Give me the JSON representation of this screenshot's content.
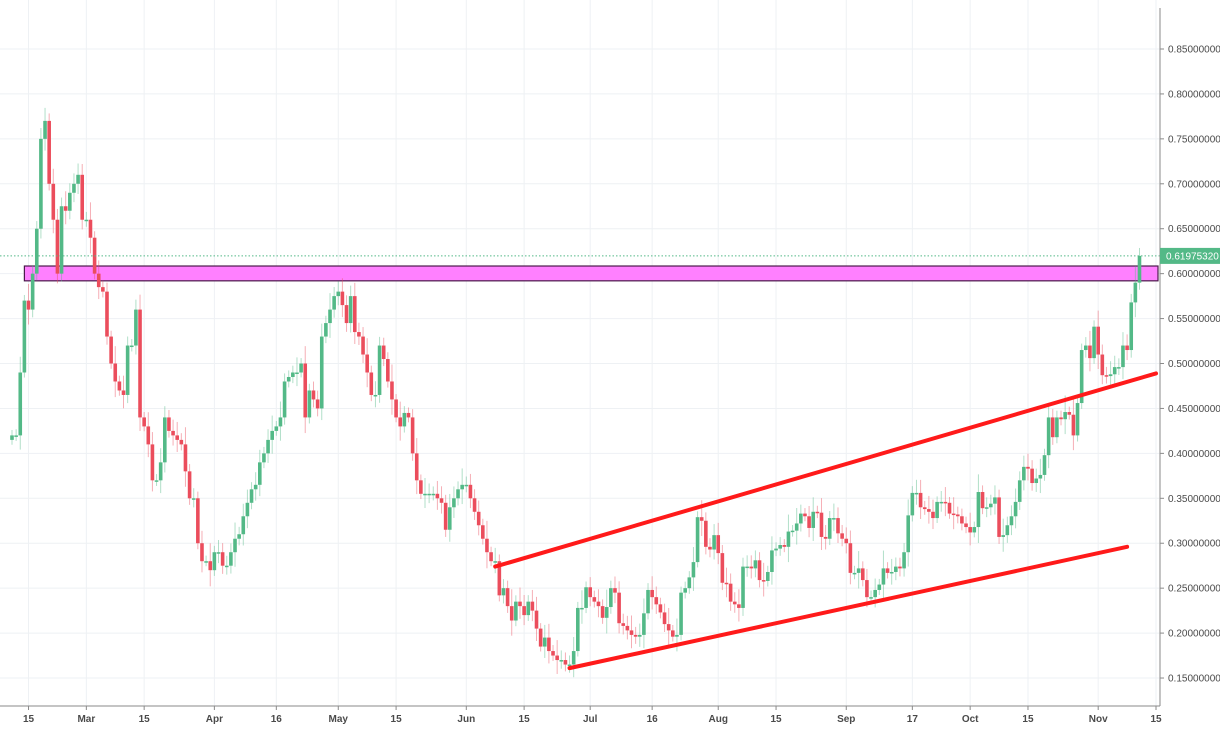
{
  "chart_data": {
    "type": "candlestick",
    "title": "",
    "xlabel": "",
    "ylabel": "",
    "first_candle_date": "Feb 11",
    "ylim": [
      0.125,
      0.875
    ],
    "grid": true,
    "y_ticks": [
      "0.15000000",
      "0.20000000",
      "0.25000000",
      "0.30000000",
      "0.35000000",
      "0.40000000",
      "0.45000000",
      "0.50000000",
      "0.55000000",
      "0.60000000",
      "0.65000000",
      "0.70000000",
      "0.75000000",
      "0.80000000",
      "0.85000000"
    ],
    "x_ticks": [
      {
        "label": "15",
        "date": "Feb 15"
      },
      {
        "label": "Mar",
        "date": "Mar 1"
      },
      {
        "label": "15",
        "date": "Mar 15"
      },
      {
        "label": "Apr",
        "date": "Apr 1"
      },
      {
        "label": "16",
        "date": "Apr 16"
      },
      {
        "label": "May",
        "date": "May 1"
      },
      {
        "label": "15",
        "date": "May 15"
      },
      {
        "label": "Jun",
        "date": "Jun 1"
      },
      {
        "label": "15",
        "date": "Jun 15"
      },
      {
        "label": "Jul",
        "date": "Jul 1"
      },
      {
        "label": "16",
        "date": "Jul 16"
      },
      {
        "label": "Aug",
        "date": "Aug 1"
      },
      {
        "label": "15",
        "date": "Aug 15"
      },
      {
        "label": "Sep",
        "date": "Sep 1"
      },
      {
        "label": "17",
        "date": "Sep 17"
      },
      {
        "label": "Oct",
        "date": "Oct 1"
      },
      {
        "label": "15",
        "date": "Oct 15"
      },
      {
        "label": "Nov",
        "date": "Nov 1"
      },
      {
        "label": "15",
        "date": "Nov 15"
      }
    ],
    "first_open": 0.415,
    "closes": [
      0.42,
      0.42,
      0.49,
      0.57,
      0.56,
      0.6,
      0.65,
      0.75,
      0.77,
      0.7,
      0.66,
      0.6,
      0.675,
      0.67,
      0.69,
      0.7,
      0.71,
      0.66,
      0.66,
      0.64,
      0.6,
      0.585,
      0.58,
      0.53,
      0.5,
      0.48,
      0.47,
      0.465,
      0.52,
      0.52,
      0.56,
      0.44,
      0.43,
      0.41,
      0.37,
      0.37,
      0.39,
      0.44,
      0.425,
      0.42,
      0.415,
      0.41,
      0.38,
      0.35,
      0.35,
      0.3,
      0.28,
      0.28,
      0.27,
      0.29,
      0.29,
      0.275,
      0.275,
      0.29,
      0.305,
      0.31,
      0.33,
      0.345,
      0.36,
      0.365,
      0.39,
      0.4,
      0.415,
      0.425,
      0.43,
      0.44,
      0.48,
      0.485,
      0.49,
      0.49,
      0.5,
      0.44,
      0.47,
      0.46,
      0.45,
      0.53,
      0.545,
      0.56,
      0.575,
      0.58,
      0.565,
      0.545,
      0.575,
      0.535,
      0.53,
      0.51,
      0.49,
      0.465,
      0.465,
      0.52,
      0.505,
      0.48,
      0.46,
      0.44,
      0.43,
      0.445,
      0.44,
      0.4,
      0.37,
      0.355,
      0.355,
      0.355,
      0.355,
      0.35,
      0.345,
      0.315,
      0.34,
      0.35,
      0.36,
      0.365,
      0.365,
      0.35,
      0.335,
      0.32,
      0.305,
      0.29,
      0.28,
      0.28,
      0.242,
      0.25,
      0.23,
      0.214,
      0.235,
      0.23,
      0.22,
      0.235,
      0.225,
      0.205,
      0.185,
      0.195,
      0.18,
      0.175,
      0.17,
      0.17,
      0.165,
      0.165,
      0.18,
      0.228,
      0.228,
      0.251,
      0.24,
      0.235,
      0.23,
      0.217,
      0.229,
      0.25,
      0.245,
      0.211,
      0.208,
      0.203,
      0.198,
      0.196,
      0.198,
      0.222,
      0.248,
      0.24,
      0.232,
      0.223,
      0.21,
      0.203,
      0.196,
      0.198,
      0.245,
      0.25,
      0.262,
      0.279,
      0.329,
      0.325,
      0.296,
      0.293,
      0.309,
      0.289,
      0.256,
      0.255,
      0.235,
      0.232,
      0.228,
      0.274,
      0.274,
      0.272,
      0.281,
      0.259,
      0.258,
      0.268,
      0.292,
      0.294,
      0.298,
      0.296,
      0.313,
      0.314,
      0.322,
      0.333,
      0.33,
      0.317,
      0.335,
      0.334,
      0.307,
      0.305,
      0.328,
      0.328,
      0.311,
      0.305,
      0.3,
      0.267,
      0.267,
      0.272,
      0.259,
      0.24,
      0.24,
      0.248,
      0.254,
      0.272,
      0.267,
      0.268,
      0.274,
      0.272,
      0.29,
      0.331,
      0.356,
      0.356,
      0.34,
      0.338,
      0.335,
      0.328,
      0.346,
      0.346,
      0.345,
      0.333,
      0.332,
      0.33,
      0.322,
      0.318,
      0.312,
      0.318,
      0.357,
      0.339,
      0.34,
      0.344,
      0.351,
      0.307,
      0.309,
      0.32,
      0.33,
      0.346,
      0.37,
      0.385,
      0.383,
      0.367,
      0.372,
      0.376,
      0.398,
      0.44,
      0.418,
      0.44,
      0.438,
      0.446,
      0.443,
      0.42,
      0.456,
      0.515,
      0.52,
      0.506,
      0.541,
      0.51,
      0.487,
      0.486,
      0.488,
      0.496,
      0.496,
      0.52,
      0.515,
      0.568,
      0.59,
      0.6198
    ],
    "resistance_zone": {
      "low": 0.592,
      "high": 0.6085,
      "from_date": "Feb 14",
      "color": "#ff80ff",
      "border": "#4a1a4a"
    },
    "trendlines": [
      {
        "from": {
          "date": "Jun 8",
          "value": 0.274
        },
        "to": {
          "date": "Nov 15",
          "value": 0.489
        },
        "color": "#ff1a1a"
      },
      {
        "from": {
          "date": "Jun 26",
          "value": 0.161
        },
        "to": {
          "date": "Nov 8",
          "value": 0.296
        },
        "color": "#ff1a1a"
      }
    ],
    "last_price": {
      "value": 0.6197532,
      "label": "0.61975320",
      "color": "#53b987"
    },
    "colors": {
      "up": "#53b987",
      "down": "#eb4d5c",
      "grid": "#eef1f4",
      "axis": "#8a8a8a"
    }
  }
}
